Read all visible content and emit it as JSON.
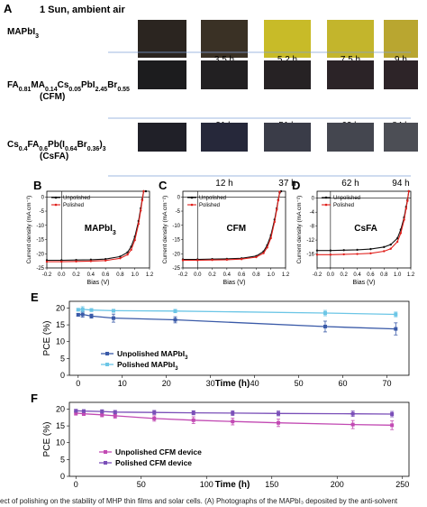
{
  "panel_a": {
    "letter": "A",
    "condition": "1 Sun, ambient air",
    "rows": [
      {
        "label_html": "MAPbI<tspan baseline-shift='sub' font-size='7'>3</tspan>",
        "label_plain": "MAPbI3",
        "times": [
          "",
          "3.5 h",
          "5.2 h",
          "7.5 h",
          "9 h"
        ],
        "tiles": [
          "#2b2520",
          "#3a3125",
          "#c8bb28",
          "#c3b52c",
          "#b9a630"
        ]
      },
      {
        "label_html": "FA<tspan baseline-shift='sub' font-size='7'>0.81</tspan>MA<tspan baseline-shift='sub' font-size='7'>0.14</tspan>Cs<tspan baseline-shift='sub' font-size='7'>0.05</tspan>PbI<tspan baseline-shift='sub' font-size='7'>2.45</tspan>Br<tspan baseline-shift='sub' font-size='7'>0.55</tspan>",
        "label_plain": "FA0.81MA0.14Cs0.05PbI2.45Br0.55",
        "label2": "(CFM)",
        "times": [
          "",
          "21 h",
          "51 h",
          "62 h",
          "84 h"
        ],
        "tiles": [
          "#1c1c1e",
          "#222022",
          "#262224",
          "#2b2327",
          "#2d2428"
        ]
      },
      {
        "label_html": "Cs<tspan baseline-shift='sub' font-size='7'>0.4</tspan>FA<tspan baseline-shift='sub' font-size='7'>0.6</tspan>Pb(I<tspan baseline-shift='sub' font-size='7'>0.64</tspan>Br<tspan baseline-shift='sub' font-size='7'>0.36</tspan>)<tspan baseline-shift='sub' font-size='7'>3</tspan>",
        "label_plain": "Cs0.4FA0.6Pb(I0.64Br0.36)3",
        "label2": "(CsFA)",
        "times": [
          "",
          "12 h",
          "37 h",
          "62 h",
          "94 h"
        ],
        "tiles": [
          "#202028",
          "#26283a",
          "#3a3c48",
          "#44464f",
          "#4c4e55"
        ]
      }
    ]
  },
  "jv_panels": [
    {
      "letter": "B",
      "label": "MAPbI",
      "label_sub": "3",
      "xlabel": "Bias (V)",
      "ylabel": "Current density (mA cm⁻²)",
      "xticks": [
        "-0.2",
        "0.0",
        "0.2",
        "0.4",
        "0.6",
        "0.8",
        "1.0",
        "1.2"
      ],
      "yticks": [
        "0",
        "-5",
        "-10",
        "-15",
        "-20",
        "-25"
      ],
      "legend": [
        "Unpolished",
        "Polished"
      ]
    },
    {
      "letter": "C",
      "label": "CFM",
      "label_sub": "",
      "xlabel": "Bias (V)",
      "ylabel": "Current density (mA cm⁻²)",
      "xticks": [
        "-0.2",
        "0.0",
        "0.2",
        "0.4",
        "0.6",
        "0.8",
        "1.0",
        "1.2"
      ],
      "yticks": [
        "0",
        "-5",
        "-10",
        "-15",
        "-20",
        "-25"
      ],
      "legend": [
        "Unpolished",
        "Polished"
      ]
    },
    {
      "letter": "D",
      "label": "CsFA",
      "label_sub": "",
      "xlabel": "Bias (V)",
      "ylabel": "Current density (mA cm⁻²)",
      "xticks": [
        "-0.2",
        "0.0",
        "0.2",
        "0.4",
        "0.6",
        "0.8",
        "1.0",
        "1.2"
      ],
      "yticks": [
        "0",
        "-4",
        "-8",
        "-12",
        "-16"
      ],
      "legend": [
        "Unpolished",
        "Polished"
      ]
    }
  ],
  "panel_e": {
    "letter": "E",
    "ylabel": "PCE (%)",
    "xlabel": "Time (h)",
    "xticks": [
      "0",
      "10",
      "20",
      "30",
      "40",
      "50",
      "60",
      "70"
    ],
    "yticks": [
      "0",
      "5",
      "10",
      "15",
      "20"
    ],
    "legend_unpolished": "Unpolished MAPbI",
    "legend_polished": "Polished MAPbI",
    "legend_sub": "3"
  },
  "panel_f": {
    "letter": "F",
    "ylabel": "PCE (%)",
    "xlabel": "Time (h)",
    "xticks": [
      "0",
      "50",
      "100",
      "150",
      "200",
      "250"
    ],
    "yticks": [
      "0",
      "5",
      "10",
      "15",
      "20"
    ],
    "legend": [
      "Unpolished CFM device",
      "Polished CFM device"
    ]
  },
  "caption_fragment": "ect of polishing on the stability of MHP thin films and solar cells. (A) Photographs of the MAPbI₃ deposited by the anti-solvent",
  "colors": {
    "unpolished_jv": "#111111",
    "polished_jv": "#e0201c",
    "e_unpolished": "#3a5aa8",
    "e_polished": "#6cc6e6",
    "f_unpolished": "#c24ab3",
    "f_polished": "#7a4fb8",
    "condition": "#3b6fc4"
  },
  "chart_data": [
    {
      "type": "line",
      "panel": "B",
      "xlabel": "Bias (V)",
      "ylabel": "Current density (mA cm⁻²)",
      "xlim": [
        -0.2,
        1.2
      ],
      "ylim": [
        -25,
        2
      ],
      "series": [
        {
          "name": "Unpolished",
          "x": [
            -0.2,
            0.0,
            0.2,
            0.4,
            0.6,
            0.8,
            0.9,
            0.95,
            1.0,
            1.05,
            1.08,
            1.1,
            1.12,
            1.15
          ],
          "y": [
            -22.3,
            -22.3,
            -22.2,
            -22.1,
            -21.9,
            -21.0,
            -19.5,
            -17.5,
            -14.0,
            -8.5,
            -4.0,
            -0.8,
            2,
            2
          ]
        },
        {
          "name": "Polished",
          "x": [
            -0.2,
            0.0,
            0.2,
            0.4,
            0.6,
            0.8,
            0.9,
            0.95,
            1.0,
            1.05,
            1.08,
            1.1,
            1.12
          ],
          "y": [
            -22.8,
            -22.8,
            -22.7,
            -22.6,
            -22.4,
            -21.6,
            -20.3,
            -18.6,
            -15.2,
            -9.5,
            -4.8,
            -1.2,
            2
          ]
        }
      ]
    },
    {
      "type": "line",
      "panel": "C",
      "xlabel": "Bias (V)",
      "ylabel": "Current density (mA cm⁻²)",
      "xlim": [
        -0.2,
        1.2
      ],
      "ylim": [
        -25,
        2
      ],
      "series": [
        {
          "name": "Unpolished",
          "x": [
            -0.2,
            0.0,
            0.2,
            0.4,
            0.6,
            0.8,
            0.9,
            0.95,
            1.0,
            1.05,
            1.08,
            1.1,
            1.12,
            1.14
          ],
          "y": [
            -22.0,
            -22.0,
            -21.9,
            -21.8,
            -21.6,
            -20.8,
            -19.2,
            -17.0,
            -13.5,
            -8.0,
            -4.0,
            -1.0,
            1.5,
            2
          ]
        },
        {
          "name": "Polished",
          "x": [
            -0.2,
            0.0,
            0.2,
            0.4,
            0.6,
            0.8,
            0.9,
            0.95,
            1.0,
            1.05,
            1.08,
            1.1,
            1.12
          ],
          "y": [
            -22.3,
            -22.3,
            -22.2,
            -22.1,
            -21.9,
            -21.2,
            -19.8,
            -17.8,
            -14.5,
            -8.8,
            -4.5,
            -1.2,
            1.8
          ]
        }
      ]
    },
    {
      "type": "line",
      "panel": "D",
      "xlabel": "Bias (V)",
      "ylabel": "Current density (mA cm⁻²)",
      "xlim": [
        -0.2,
        1.2
      ],
      "ylim": [
        -20,
        2
      ],
      "series": [
        {
          "name": "Unpolished",
          "x": [
            -0.2,
            0.0,
            0.2,
            0.4,
            0.6,
            0.8,
            0.9,
            1.0,
            1.05,
            1.1,
            1.13,
            1.15,
            1.17
          ],
          "y": [
            -15.0,
            -15.0,
            -14.9,
            -14.8,
            -14.6,
            -14.0,
            -13.3,
            -11.5,
            -9.0,
            -5.5,
            -2.5,
            -0.5,
            2
          ]
        },
        {
          "name": "Polished",
          "x": [
            -0.2,
            0.0,
            0.2,
            0.4,
            0.6,
            0.8,
            0.9,
            1.0,
            1.05,
            1.1,
            1.13,
            1.15,
            1.17
          ],
          "y": [
            -16.2,
            -16.2,
            -16.1,
            -16.0,
            -15.8,
            -15.2,
            -14.5,
            -12.5,
            -10.0,
            -6.2,
            -3.0,
            -0.8,
            2
          ]
        }
      ]
    },
    {
      "type": "line",
      "panel": "E",
      "xlabel": "Time (h)",
      "ylabel": "PCE (%)",
      "xlim": [
        -2,
        75
      ],
      "ylim": [
        0,
        22
      ],
      "series": [
        {
          "name": "Unpolished MAPbI3",
          "x": [
            0,
            1,
            3,
            8,
            22,
            56,
            72
          ],
          "y": [
            18.0,
            18.1,
            17.6,
            17.0,
            16.5,
            14.5,
            13.8
          ],
          "err": [
            0.4,
            0.8,
            0.6,
            1.2,
            0.9,
            1.6,
            1.8
          ]
        },
        {
          "name": "Polished MAPbI3",
          "x": [
            0,
            1,
            3,
            8,
            22,
            56,
            72
          ],
          "y": [
            19.5,
            19.6,
            19.4,
            19.2,
            19.1,
            18.5,
            18.1
          ],
          "err": [
            0.3,
            0.8,
            0.4,
            0.4,
            0.5,
            0.8,
            0.7
          ]
        }
      ]
    },
    {
      "type": "line",
      "panel": "F",
      "xlabel": "Time (h)",
      "ylabel": "PCE (%)",
      "xlim": [
        -5,
        255
      ],
      "ylim": [
        0,
        22
      ],
      "series": [
        {
          "name": "Unpolished CFM device",
          "x": [
            0,
            6,
            20,
            30,
            60,
            90,
            120,
            155,
            212,
            242
          ],
          "y": [
            18.8,
            18.6,
            18.3,
            18.0,
            17.2,
            16.7,
            16.3,
            15.9,
            15.4,
            15.2
          ],
          "err": [
            0.6,
            0.5,
            0.6,
            0.7,
            0.8,
            1.0,
            1.0,
            1.1,
            1.2,
            1.3
          ]
        },
        {
          "name": "Polished CFM device",
          "x": [
            0,
            6,
            20,
            30,
            60,
            90,
            120,
            155,
            212,
            242
          ],
          "y": [
            19.5,
            19.4,
            19.3,
            19.1,
            19.0,
            18.9,
            18.8,
            18.7,
            18.6,
            18.5
          ],
          "err": [
            0.4,
            0.4,
            0.5,
            0.5,
            0.6,
            0.6,
            0.7,
            0.7,
            0.8,
            0.8
          ]
        }
      ]
    }
  ]
}
